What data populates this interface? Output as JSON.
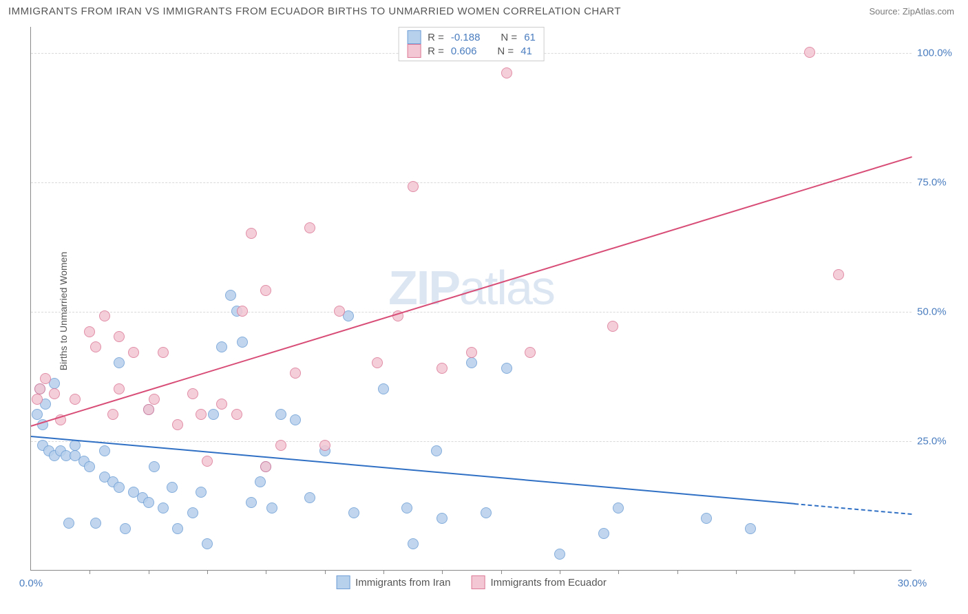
{
  "title": "IMMIGRANTS FROM IRAN VS IMMIGRANTS FROM ECUADOR BIRTHS TO UNMARRIED WOMEN CORRELATION CHART",
  "source": "Source: ZipAtlas.com",
  "ylabel": "Births to Unmarried Women",
  "watermark": "ZIPatlas",
  "chart": {
    "type": "scatter",
    "xmin": 0,
    "xmax": 30,
    "ymin": 0,
    "ymax": 105,
    "yticks": [
      {
        "v": 25,
        "label": "25.0%"
      },
      {
        "v": 50,
        "label": "50.0%"
      },
      {
        "v": 75,
        "label": "75.0%"
      },
      {
        "v": 100,
        "label": "100.0%"
      }
    ],
    "xticks_minor": [
      2,
      4,
      6,
      8,
      10,
      12,
      14,
      16,
      18,
      20,
      22,
      24,
      26,
      28
    ],
    "xtick_labels": [
      {
        "v": 0,
        "label": "0.0%"
      },
      {
        "v": 30,
        "label": "30.0%"
      }
    ],
    "grid_color": "#d9d9d9",
    "background_color": "#ffffff",
    "series": [
      {
        "name": "Immigrants from Iran",
        "color_fill": "#b7d0ec",
        "color_stroke": "#6f9fd6",
        "color_line": "#2f6fc4",
        "r_value": "-0.188",
        "n_value": "61",
        "marker_radius": 8,
        "trend": {
          "x1": 0,
          "y1": 26,
          "x2": 26,
          "y2": 13,
          "x2_dash": 30,
          "y2_dash": 11
        },
        "points": [
          [
            0.2,
            30
          ],
          [
            0.3,
            35
          ],
          [
            0.5,
            32
          ],
          [
            0.4,
            24
          ],
          [
            0.6,
            23
          ],
          [
            0.8,
            22
          ],
          [
            1.0,
            23
          ],
          [
            1.2,
            22
          ],
          [
            0.8,
            36
          ],
          [
            0.4,
            28
          ],
          [
            1.5,
            22
          ],
          [
            1.8,
            21
          ],
          [
            2.0,
            20
          ],
          [
            1.5,
            24
          ],
          [
            1.3,
            9
          ],
          [
            2.5,
            18
          ],
          [
            2.8,
            17
          ],
          [
            3.0,
            16
          ],
          [
            2.2,
            9
          ],
          [
            2.5,
            23
          ],
          [
            3.5,
            15
          ],
          [
            3.8,
            14
          ],
          [
            4.0,
            13
          ],
          [
            3.2,
            8
          ],
          [
            3.0,
            40
          ],
          [
            4.5,
            12
          ],
          [
            4.2,
            20
          ],
          [
            5.0,
            8
          ],
          [
            4.8,
            16
          ],
          [
            4.0,
            31
          ],
          [
            5.5,
            11
          ],
          [
            6.5,
            43
          ],
          [
            5.8,
            15
          ],
          [
            6.0,
            5
          ],
          [
            6.2,
            30
          ],
          [
            7.0,
            50
          ],
          [
            6.8,
            53
          ],
          [
            7.5,
            13
          ],
          [
            8.0,
            20
          ],
          [
            8.5,
            30
          ],
          [
            7.2,
            44
          ],
          [
            8.2,
            12
          ],
          [
            9.0,
            29
          ],
          [
            9.5,
            14
          ],
          [
            10.0,
            23
          ],
          [
            10.8,
            49
          ],
          [
            11.0,
            11
          ],
          [
            12.0,
            35
          ],
          [
            12.8,
            12
          ],
          [
            13.0,
            5
          ],
          [
            13.8,
            23
          ],
          [
            14.0,
            10
          ],
          [
            15.0,
            40
          ],
          [
            15.5,
            11
          ],
          [
            16.2,
            39
          ],
          [
            18.0,
            3
          ],
          [
            19.5,
            7
          ],
          [
            20.0,
            12
          ],
          [
            23.0,
            10
          ],
          [
            24.5,
            8
          ],
          [
            7.8,
            17
          ]
        ]
      },
      {
        "name": "Immigrants from Ecuador",
        "color_fill": "#f3c7d3",
        "color_stroke": "#dc7a98",
        "color_line": "#d84d77",
        "r_value": "0.606",
        "n_value": "41",
        "marker_radius": 8,
        "trend": {
          "x1": 0,
          "y1": 28,
          "x2": 30,
          "y2": 80,
          "x2_dash": 30,
          "y2_dash": 80
        },
        "points": [
          [
            0.2,
            33
          ],
          [
            0.3,
            35
          ],
          [
            0.5,
            37
          ],
          [
            0.8,
            34
          ],
          [
            1.0,
            29
          ],
          [
            1.5,
            33
          ],
          [
            2.0,
            46
          ],
          [
            2.2,
            43
          ],
          [
            2.5,
            49
          ],
          [
            2.8,
            30
          ],
          [
            3.0,
            35
          ],
          [
            3.5,
            42
          ],
          [
            4.0,
            31
          ],
          [
            4.2,
            33
          ],
          [
            4.5,
            42
          ],
          [
            5.0,
            28
          ],
          [
            5.5,
            34
          ],
          [
            5.8,
            30
          ],
          [
            6.0,
            21
          ],
          [
            6.5,
            32
          ],
          [
            7.0,
            30
          ],
          [
            7.2,
            50
          ],
          [
            7.5,
            65
          ],
          [
            8.0,
            20
          ],
          [
            8.5,
            24
          ],
          [
            9.0,
            38
          ],
          [
            9.5,
            66
          ],
          [
            10.0,
            24
          ],
          [
            10.5,
            50
          ],
          [
            11.8,
            40
          ],
          [
            12.5,
            49
          ],
          [
            13.0,
            74
          ],
          [
            14.0,
            39
          ],
          [
            15.0,
            42
          ],
          [
            16.2,
            96
          ],
          [
            17.0,
            42
          ],
          [
            19.8,
            47
          ],
          [
            26.5,
            100
          ],
          [
            27.5,
            57
          ],
          [
            8.0,
            54
          ],
          [
            3.0,
            45
          ]
        ]
      }
    ],
    "legend_box_labels": {
      "r": "R =",
      "n": "N ="
    },
    "bottom_legend": [
      "Immigrants from Iran",
      "Immigrants from Ecuador"
    ]
  }
}
